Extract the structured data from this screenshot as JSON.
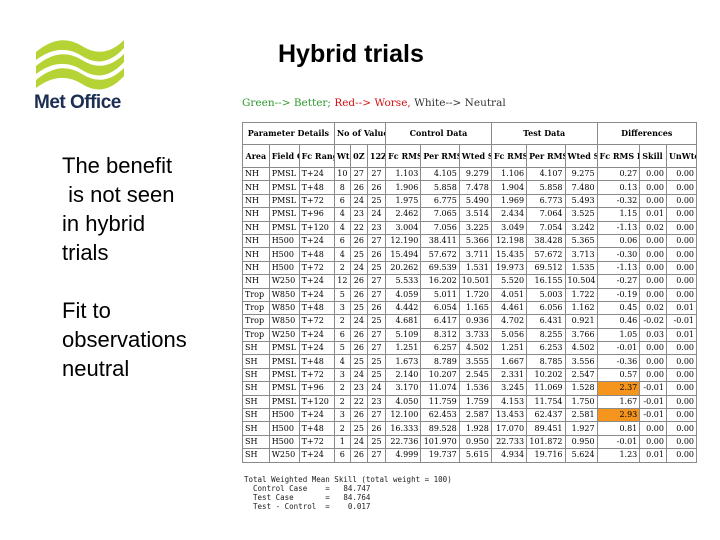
{
  "slide": {
    "title": "Hybrid trials",
    "bullets": [
      "The benefit\n is not seen\nin hybrid\ntrials",
      "Fit to\nobservations\nneutral"
    ]
  },
  "logo": {
    "text": "Met Office",
    "color": "#b5d334"
  },
  "legend": {
    "green": "Green--> Better;",
    "red": "Red--> Worse,",
    "white": "White--> Neutral"
  },
  "table": {
    "groups": [
      "Parameter Details",
      "No of Values",
      "Control Data",
      "Test Data",
      "Differences"
    ],
    "headers": [
      "Area",
      "Field Code",
      "Fc Range",
      "Wt",
      "0Z",
      "12Z",
      "Fc RMS",
      "Per RMS",
      "Wted Skill",
      "Fc RMS",
      "Per RMS",
      "Wted Skill",
      "Fc RMS Diff (%)",
      "Skill Diff",
      "UnWted Diff"
    ],
    "rows": [
      [
        "NH",
        "PMSL",
        "T+24",
        "10",
        "27",
        "27",
        "1.103",
        "4.105",
        "9.279",
        "1.106",
        "4.107",
        "9.275",
        "0.27",
        "0.00",
        "0.00"
      ],
      [
        "NH",
        "PMSL",
        "T+48",
        "8",
        "26",
        "26",
        "1.906",
        "5.858",
        "7.478",
        "1.904",
        "5.858",
        "7.480",
        "0.13",
        "0.00",
        "0.00"
      ],
      [
        "NH",
        "PMSL",
        "T+72",
        "6",
        "24",
        "25",
        "1.975",
        "6.775",
        "5.490",
        "1.969",
        "6.773",
        "5.493",
        "-0.32",
        "0.00",
        "0.00"
      ],
      [
        "NH",
        "PMSL",
        "T+96",
        "4",
        "23",
        "24",
        "2.462",
        "7.065",
        "3.514",
        "2.434",
        "7.064",
        "3.525",
        "1.15",
        "0.01",
        "0.00"
      ],
      [
        "NH",
        "PMSL",
        "T+120",
        "4",
        "22",
        "23",
        "3.004",
        "7.056",
        "3.225",
        "3.049",
        "7.054",
        "3.242",
        "-1.13",
        "0.02",
        "0.00"
      ],
      [
        "NH",
        "H500",
        "T+24",
        "6",
        "26",
        "27",
        "12.190",
        "38.411",
        "5.366",
        "12.198",
        "38.428",
        "5.365",
        "0.06",
        "0.00",
        "0.00"
      ],
      [
        "NH",
        "H500",
        "T+48",
        "4",
        "25",
        "26",
        "15.494",
        "57.672",
        "3.711",
        "15.435",
        "57.672",
        "3.713",
        "-0.30",
        "0.00",
        "0.00"
      ],
      [
        "NH",
        "H500",
        "T+72",
        "2",
        "24",
        "25",
        "20.262",
        "69.539",
        "1.531",
        "19.973",
        "69.512",
        "1.535",
        "-1.13",
        "0.00",
        "0.00"
      ],
      [
        "NH",
        "W250",
        "T+24",
        "12",
        "26",
        "27",
        "5.533",
        "16.202",
        "10.501",
        "5.520",
        "16.155",
        "10.504",
        "-0.27",
        "0.00",
        "0.00"
      ],
      [
        "Trop",
        "W850",
        "T+24",
        "5",
        "26",
        "27",
        "4.059",
        "5.011",
        "1.720",
        "4.051",
        "5.003",
        "1.722",
        "-0.19",
        "0.00",
        "0.00"
      ],
      [
        "Trop",
        "W850",
        "T+48",
        "3",
        "25",
        "26",
        "4.442",
        "6.054",
        "1.165",
        "4.461",
        "6.056",
        "1.162",
        "0.45",
        "0.02",
        "0.01"
      ],
      [
        "Trop",
        "W850",
        "T+72",
        "2",
        "24",
        "25",
        "4.681",
        "6.417",
        "0.936",
        "4.702",
        "6.431",
        "0.921",
        "0.46",
        "-0.02",
        "-0.01"
      ],
      [
        "Trop",
        "W250",
        "T+24",
        "6",
        "26",
        "27",
        "5.109",
        "8.312",
        "3.733",
        "5.056",
        "8.255",
        "3.766",
        "1.05",
        "0.03",
        "0.01"
      ],
      [
        "SH",
        "PMSL",
        "T+24",
        "5",
        "26",
        "27",
        "1.251",
        "6.257",
        "4.502",
        "1.251",
        "6.253",
        "4.502",
        "-0.01",
        "0.00",
        "0.00"
      ],
      [
        "SH",
        "PMSL",
        "T+48",
        "4",
        "25",
        "25",
        "1.673",
        "8.789",
        "3.555",
        "1.667",
        "8.785",
        "3.556",
        "-0.36",
        "0.00",
        "0.00"
      ],
      [
        "SH",
        "PMSL",
        "T+72",
        "3",
        "24",
        "25",
        "2.140",
        "10.207",
        "2.545",
        "2.331",
        "10.202",
        "2.547",
        "0.57",
        "0.00",
        "0.00"
      ],
      [
        "SH",
        "PMSL",
        "T+96",
        "2",
        "23",
        "24",
        "3.170",
        "11.074",
        "1.536",
        "3.245",
        "11.069",
        "1.528",
        "2.37",
        "-0.01",
        "0.00"
      ],
      [
        "SH",
        "PMSL",
        "T+120",
        "2",
        "22",
        "23",
        "4.050",
        "11.759",
        "1.759",
        "4.153",
        "11.754",
        "1.750",
        "1.67",
        "-0.01",
        "0.00"
      ],
      [
        "SH",
        "H500",
        "T+24",
        "3",
        "26",
        "27",
        "12.100",
        "62.453",
        "2.587",
        "13.453",
        "62.437",
        "2.581",
        "2.93",
        "-0.01",
        "0.00"
      ],
      [
        "SH",
        "H500",
        "T+48",
        "2",
        "25",
        "26",
        "16.333",
        "89.528",
        "1.928",
        "17.070",
        "89.451",
        "1.927",
        "0.81",
        "0.00",
        "0.00"
      ],
      [
        "SH",
        "H500",
        "T+72",
        "1",
        "24",
        "25",
        "22.736",
        "101.970",
        "0.950",
        "22.733",
        "101.872",
        "0.950",
        "-0.01",
        "0.00",
        "0.00"
      ],
      [
        "SH",
        "W250",
        "T+24",
        "6",
        "26",
        "27",
        "4.999",
        "19.737",
        "5.615",
        "4.934",
        "19.716",
        "5.624",
        "1.23",
        "0.01",
        "0.00"
      ]
    ],
    "highlight_rows": [
      16,
      18
    ],
    "highlight_color": "#f5951e"
  },
  "summary": {
    "line1": "Total Weighted Mean Skill (total weight = 100)",
    "line2": "  Control Case    =   84.747",
    "line3": "  Test Case       =   84.764",
    "line4": "  Test - Control  =    0.017"
  }
}
